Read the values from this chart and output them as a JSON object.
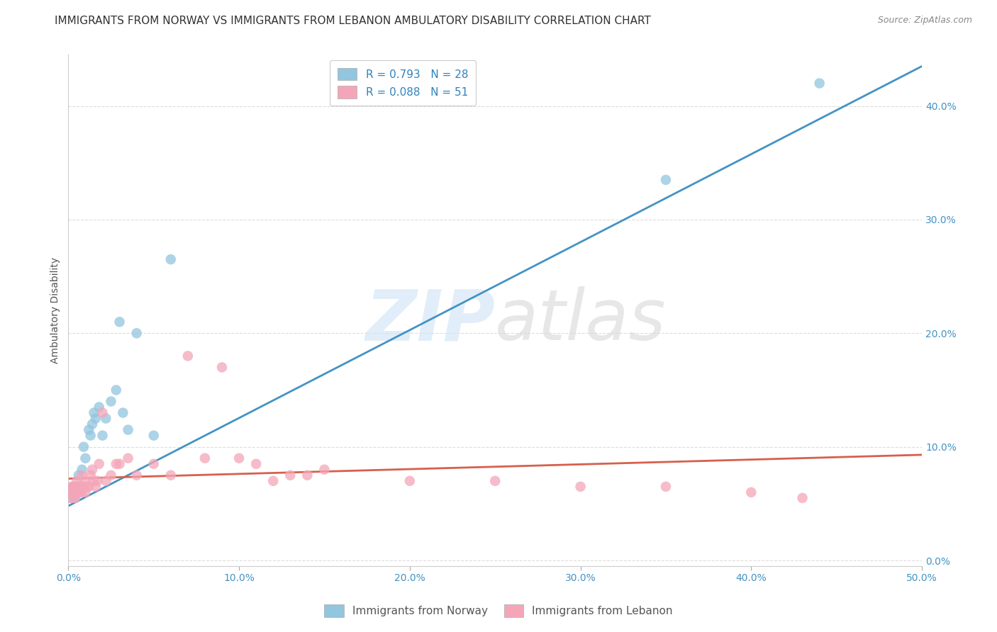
{
  "title": "IMMIGRANTS FROM NORWAY VS IMMIGRANTS FROM LEBANON AMBULATORY DISABILITY CORRELATION CHART",
  "source": "Source: ZipAtlas.com",
  "ylabel": "Ambulatory Disability",
  "xlim": [
    0.0,
    0.5
  ],
  "ylim": [
    -0.005,
    0.445
  ],
  "xticks": [
    0.0,
    0.1,
    0.2,
    0.3,
    0.4,
    0.5
  ],
  "yticks": [
    0.0,
    0.1,
    0.2,
    0.3,
    0.4
  ],
  "xticklabels": [
    "0.0%",
    "10.0%",
    "20.0%",
    "30.0%",
    "40.0%",
    "50.0%"
  ],
  "yticklabels": [
    "0.0%",
    "10.0%",
    "20.0%",
    "30.0%",
    "40.0%"
  ],
  "norway_color": "#92c5de",
  "lebanon_color": "#f4a6b8",
  "norway_R": 0.793,
  "norway_N": 28,
  "lebanon_R": 0.088,
  "lebanon_N": 51,
  "norway_line_color": "#4393c3",
  "lebanon_line_color": "#d6604d",
  "legend_label_norway": "Immigrants from Norway",
  "legend_label_lebanon": "Immigrants from Lebanon",
  "norway_x": [
    0.001,
    0.002,
    0.003,
    0.004,
    0.005,
    0.006,
    0.007,
    0.008,
    0.009,
    0.01,
    0.012,
    0.013,
    0.014,
    0.015,
    0.016,
    0.018,
    0.02,
    0.022,
    0.025,
    0.028,
    0.03,
    0.032,
    0.035,
    0.04,
    0.05,
    0.06,
    0.35,
    0.44
  ],
  "norway_y": [
    0.055,
    0.06,
    0.065,
    0.055,
    0.06,
    0.075,
    0.065,
    0.08,
    0.1,
    0.09,
    0.115,
    0.11,
    0.12,
    0.13,
    0.125,
    0.135,
    0.11,
    0.125,
    0.14,
    0.15,
    0.21,
    0.13,
    0.115,
    0.2,
    0.11,
    0.265,
    0.335,
    0.42
  ],
  "lebanon_x": [
    0.001,
    0.002,
    0.002,
    0.003,
    0.003,
    0.004,
    0.004,
    0.005,
    0.005,
    0.005,
    0.006,
    0.006,
    0.007,
    0.007,
    0.008,
    0.008,
    0.009,
    0.01,
    0.01,
    0.011,
    0.012,
    0.013,
    0.014,
    0.015,
    0.016,
    0.017,
    0.018,
    0.02,
    0.022,
    0.025,
    0.028,
    0.03,
    0.035,
    0.04,
    0.05,
    0.06,
    0.07,
    0.08,
    0.09,
    0.1,
    0.11,
    0.12,
    0.13,
    0.14,
    0.15,
    0.2,
    0.25,
    0.3,
    0.35,
    0.4,
    0.43
  ],
  "lebanon_y": [
    0.06,
    0.055,
    0.065,
    0.06,
    0.065,
    0.055,
    0.065,
    0.06,
    0.065,
    0.07,
    0.06,
    0.065,
    0.06,
    0.065,
    0.06,
    0.075,
    0.065,
    0.06,
    0.07,
    0.065,
    0.065,
    0.075,
    0.08,
    0.07,
    0.065,
    0.07,
    0.085,
    0.13,
    0.07,
    0.075,
    0.085,
    0.085,
    0.09,
    0.075,
    0.085,
    0.075,
    0.18,
    0.09,
    0.17,
    0.09,
    0.085,
    0.07,
    0.075,
    0.075,
    0.08,
    0.07,
    0.07,
    0.065,
    0.065,
    0.06,
    0.055
  ],
  "norway_line_x0": 0.0,
  "norway_line_y0": 0.048,
  "norway_line_x1": 0.5,
  "norway_line_y1": 0.435,
  "lebanon_line_x0": 0.0,
  "lebanon_line_y0": 0.072,
  "lebanon_line_x1": 0.5,
  "lebanon_line_y1": 0.093,
  "watermark_zip": "ZIP",
  "watermark_atlas": "atlas",
  "background_color": "#ffffff",
  "grid_color": "#dddddd",
  "title_fontsize": 11,
  "axis_label_fontsize": 10,
  "tick_fontsize": 10,
  "legend_fontsize": 11
}
